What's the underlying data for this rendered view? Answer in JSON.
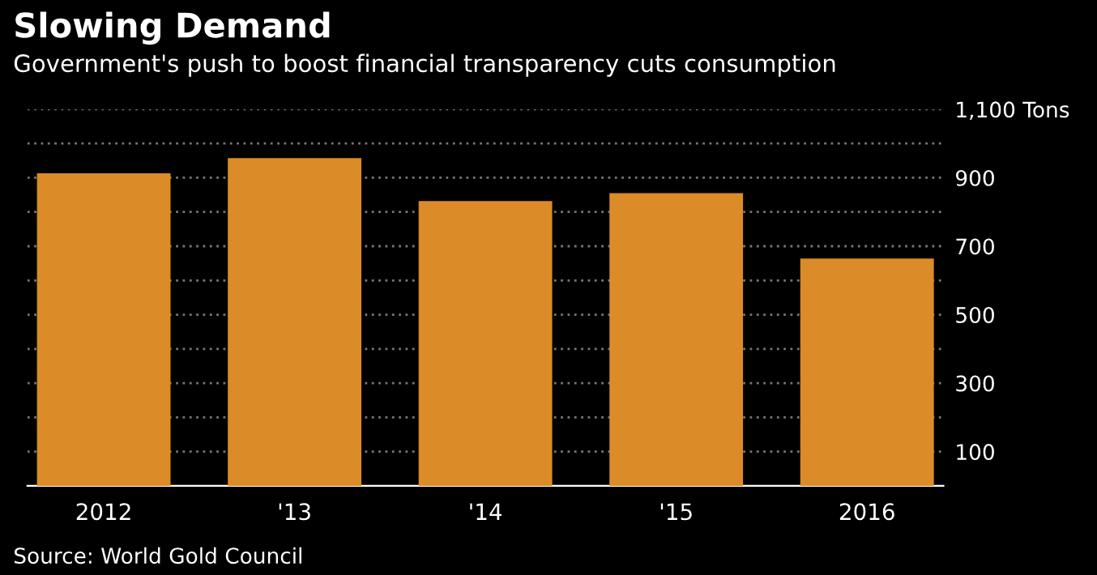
{
  "chart_data": {
    "type": "bar",
    "title": "Slowing Demand",
    "subtitle": "Government's push to boost financial transparency cuts consumption",
    "categories": [
      "2012",
      "'13",
      "'14",
      "'15",
      "2016"
    ],
    "values": [
      913,
      957,
      832,
      855,
      664
    ],
    "color": "#db8b28",
    "ylim": [
      0,
      1100
    ],
    "yticks": [
      {
        "value": 100,
        "label": "100"
      },
      {
        "value": 200,
        "label": null
      },
      {
        "value": 300,
        "label": "300"
      },
      {
        "value": 400,
        "label": null
      },
      {
        "value": 500,
        "label": "500"
      },
      {
        "value": 600,
        "label": null
      },
      {
        "value": 700,
        "label": "700"
      },
      {
        "value": 800,
        "label": null
      },
      {
        "value": 900,
        "label": "900"
      },
      {
        "value": 1000,
        "label": null
      },
      {
        "value": 1100,
        "label": "1,100 Tons"
      }
    ],
    "grid": "y",
    "annotations": [
      "Source: World Gold Council"
    ]
  }
}
